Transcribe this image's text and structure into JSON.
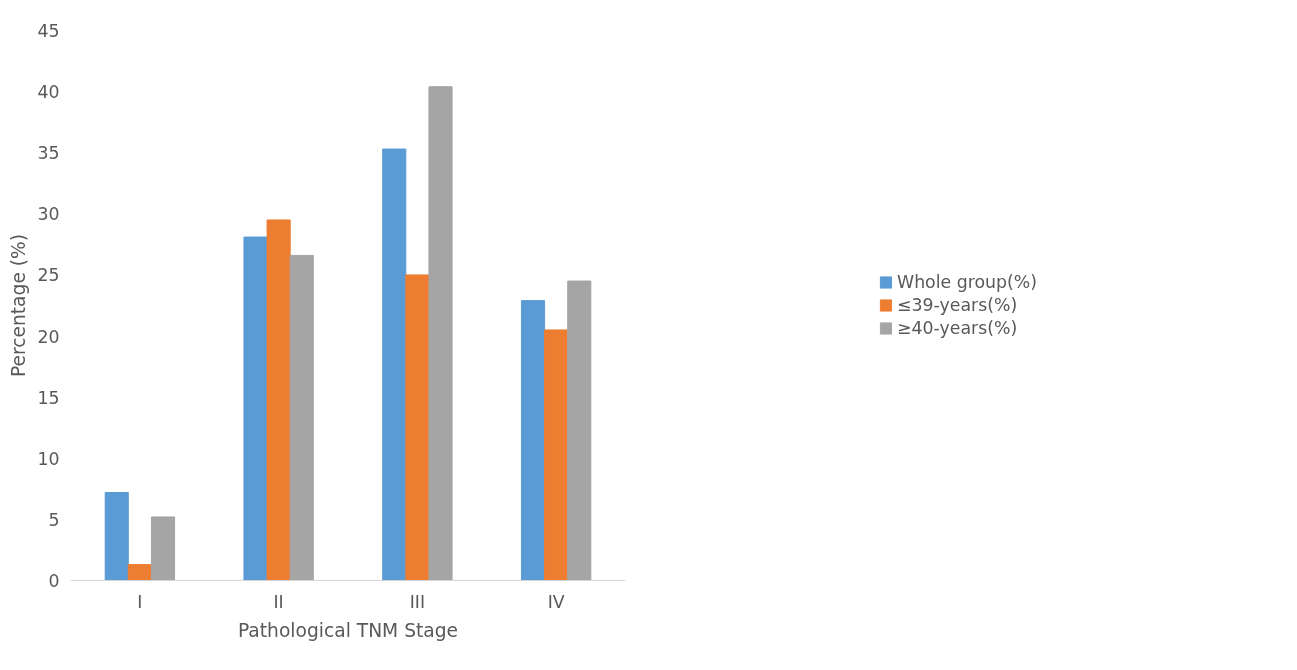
{
  "chart_data": {
    "type": "bar",
    "xlabel": "Pathological TNM Stage",
    "ylabel": "Percentage (%)",
    "categories": [
      "I",
      "II",
      "III",
      "IV"
    ],
    "series": [
      {
        "name": "Whole group(%)",
        "color": "#5b9bd5",
        "values": [
          7.2,
          28.1,
          35.3,
          22.9
        ]
      },
      {
        "name": "≤39-years(%)",
        "color": "#ed7d31",
        "values": [
          1.3,
          29.5,
          25.0,
          20.5
        ]
      },
      {
        "name": "≥40-years(%)",
        "color": "#a5a5a5",
        "values": [
          5.2,
          26.6,
          40.4,
          24.5
        ]
      }
    ],
    "ylim": [
      0,
      45
    ],
    "yticks": [
      0,
      5,
      10,
      15,
      20,
      25,
      30,
      35,
      40,
      45
    ],
    "grid": false,
    "legend": "right"
  }
}
